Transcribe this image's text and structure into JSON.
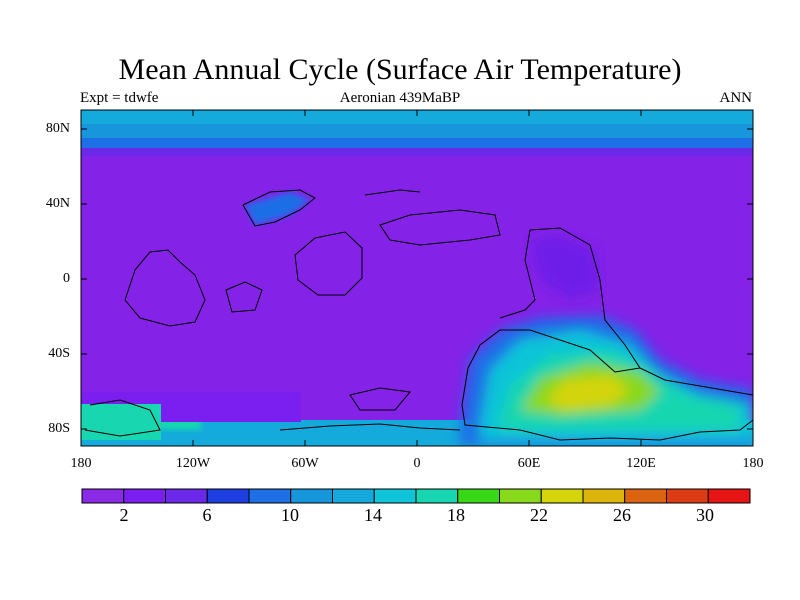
{
  "title": "Mean Annual Cycle (Surface Air Temperature)",
  "subtitle": {
    "left": "Expt = tdwfe",
    "center": "Aeronian 439MaBP",
    "right": "ANN"
  },
  "axes": {
    "y_ticks": [
      "80N",
      "40N",
      "0",
      "40S",
      "80S"
    ],
    "x_ticks": [
      "180",
      "120W",
      "60W",
      "0",
      "60E",
      "120E",
      "180"
    ]
  },
  "colorbar": {
    "colors": [
      "#8a2ae6",
      "#7a1ff0",
      "#6a28e8",
      "#1d3ee0",
      "#1e6ee6",
      "#1896dc",
      "#14aadc",
      "#10c4d8",
      "#18d6b0",
      "#38d818",
      "#88d81c",
      "#d4d40a",
      "#dcb40c",
      "#dc6410",
      "#dc3c14",
      "#e61414"
    ],
    "labels": [
      "2",
      "6",
      "10",
      "14",
      "18",
      "22",
      "26",
      "30"
    ]
  },
  "field_colors": {
    "base": "#8422e8",
    "cool": "#6e1ee8",
    "mid": "#1e6ee6",
    "cyan": "#10c4d8",
    "teal": "#18d6b0",
    "green": "#88d81c",
    "yellow": "#d4d40a"
  }
}
